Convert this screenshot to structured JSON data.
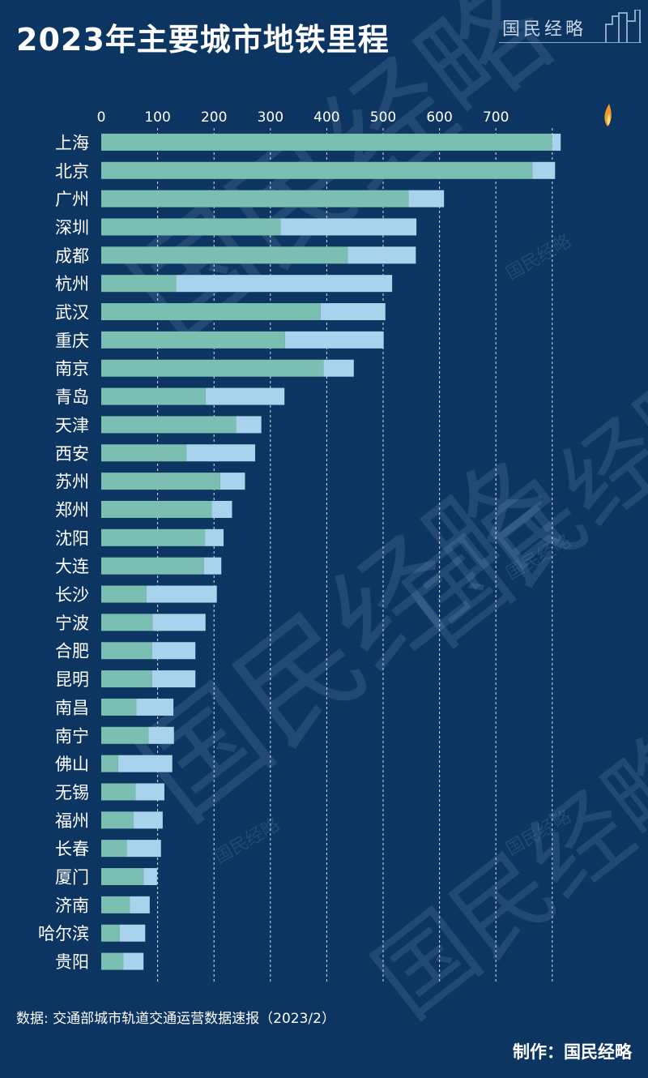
{
  "header": {
    "title": "2023年主要城市地铁里程"
  },
  "brand": {
    "name": "国民经略"
  },
  "footer": {
    "source": "数据: 交通部城市轨道交通运营数据速报（2023/2）",
    "maker": "制作：国民经略"
  },
  "colors": {
    "background": "#0d3561",
    "bar_dark": "#7bbfb2",
    "bar_light": "#a9d3ec",
    "grid": "#d7e3ef"
  },
  "chart_data": {
    "type": "bar",
    "orientation": "horizontal",
    "stacked": true,
    "title": "2023年主要城市地铁里程",
    "xlim": [
      0,
      800
    ],
    "x_ticks": [
      0,
      100,
      200,
      300,
      400,
      500,
      600,
      700
    ],
    "x_axis_position": "top",
    "grid": true,
    "categories": [
      "上海",
      "北京",
      "广州",
      "深圳",
      "成都",
      "杭州",
      "武汉",
      "重庆",
      "南京",
      "青岛",
      "天津",
      "西安",
      "苏州",
      "郑州",
      "沈阳",
      "大连",
      "长沙",
      "宁波",
      "合肥",
      "昆明",
      "南昌",
      "南宁",
      "佛山",
      "无锡",
      "福州",
      "长春",
      "厦门",
      "济南",
      "哈尔滨",
      "贵阳"
    ],
    "series": [
      {
        "values": [
          800,
          765,
          545,
          318,
          437,
          133,
          389,
          326,
          394,
          185,
          239,
          151,
          211,
          196,
          184,
          182,
          80,
          91,
          90,
          90,
          62,
          84,
          30,
          61,
          57,
          45,
          75,
          51,
          33,
          39
        ]
      },
      {
        "values": [
          15,
          40,
          63,
          241,
          121,
          383,
          115,
          175,
          54,
          140,
          45,
          122,
          44,
          36,
          33,
          31,
          125,
          94,
          77,
          77,
          66,
          45,
          96,
          51,
          52,
          61,
          24,
          35,
          45,
          36
        ]
      }
    ]
  }
}
